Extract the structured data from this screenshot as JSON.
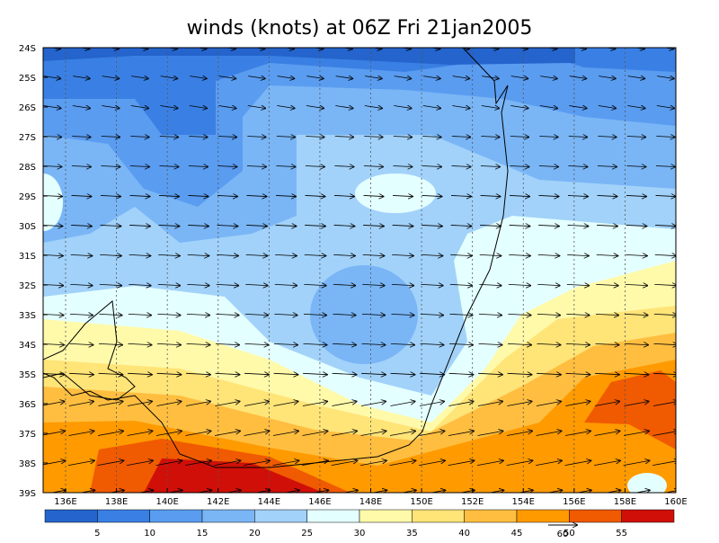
{
  "title": "winds (knots) at 06Z Fri 21jan2005",
  "lat_labels": [
    "24S",
    "25S",
    "26S",
    "27S",
    "28S",
    "29S",
    "30S",
    "31S",
    "32S",
    "33S",
    "34S",
    "35S",
    "36S",
    "37S",
    "38S",
    "39S"
  ],
  "lon_labels": [
    "136E",
    "138E",
    "140E",
    "142E",
    "144E",
    "146E",
    "148E",
    "150E",
    "152E",
    "154E",
    "156E",
    "158E",
    "160E"
  ],
  "colorbar": {
    "colors": [
      "#2464cc",
      "#3a80e4",
      "#5a9cf0",
      "#7ab6f6",
      "#a2d2fa",
      "#e4ffff",
      "#fffaaa",
      "#ffe478",
      "#ffbe40",
      "#ff9a00",
      "#f05a00",
      "#d01008"
    ],
    "labels": [
      "5",
      "10",
      "15",
      "20",
      "25",
      "30",
      "35",
      "40",
      "45",
      "50",
      "55"
    ]
  },
  "vector_key": {
    "label": "60"
  }
}
